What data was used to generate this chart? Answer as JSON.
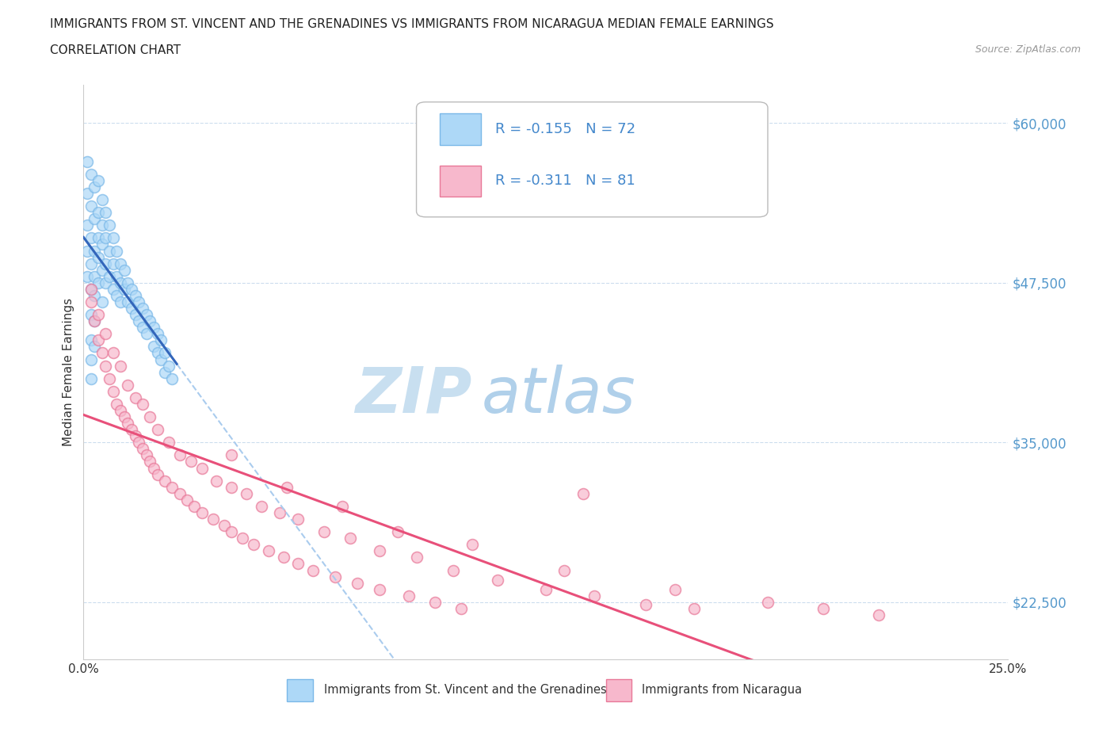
{
  "title_line1": "IMMIGRANTS FROM ST. VINCENT AND THE GRENADINES VS IMMIGRANTS FROM NICARAGUA MEDIAN FEMALE EARNINGS",
  "title_line2": "CORRELATION CHART",
  "source": "Source: ZipAtlas.com",
  "ylabel": "Median Female Earnings",
  "xlim": [
    0.0,
    0.25
  ],
  "ylim": [
    18000,
    63000
  ],
  "yticks": [
    22500,
    35000,
    47500,
    60000
  ],
  "ytick_labels": [
    "$22,500",
    "$35,000",
    "$47,500",
    "$60,000"
  ],
  "blue_R": -0.155,
  "blue_N": 72,
  "pink_R": -0.311,
  "pink_N": 81,
  "blue_color": "#add8f7",
  "blue_edge": "#7ab8e8",
  "pink_color": "#f7b8cc",
  "pink_edge": "#e87898",
  "blue_line_color": "#3366bb",
  "pink_line_color": "#e8507a",
  "dashed_line_color": "#aaccee",
  "grid_color": "#ccddee",
  "watermark_zip_color": "#c8dff0",
  "watermark_atlas_color": "#b0d0ea",
  "legend_blue_label": "Immigrants from St. Vincent and the Grenadines",
  "legend_pink_label": "Immigrants from Nicaragua",
  "blue_x": [
    0.001,
    0.001,
    0.001,
    0.001,
    0.001,
    0.002,
    0.002,
    0.002,
    0.002,
    0.002,
    0.002,
    0.002,
    0.002,
    0.002,
    0.003,
    0.003,
    0.003,
    0.003,
    0.003,
    0.003,
    0.003,
    0.004,
    0.004,
    0.004,
    0.004,
    0.004,
    0.005,
    0.005,
    0.005,
    0.005,
    0.005,
    0.006,
    0.006,
    0.006,
    0.006,
    0.007,
    0.007,
    0.007,
    0.008,
    0.008,
    0.008,
    0.009,
    0.009,
    0.009,
    0.01,
    0.01,
    0.01,
    0.011,
    0.011,
    0.012,
    0.012,
    0.013,
    0.013,
    0.014,
    0.014,
    0.015,
    0.015,
    0.016,
    0.016,
    0.017,
    0.017,
    0.018,
    0.019,
    0.019,
    0.02,
    0.02,
    0.021,
    0.021,
    0.022,
    0.022,
    0.023,
    0.024
  ],
  "blue_y": [
    57000,
    54500,
    52000,
    50000,
    48000,
    56000,
    53500,
    51000,
    49000,
    47000,
    45000,
    43000,
    41500,
    40000,
    55000,
    52500,
    50000,
    48000,
    46500,
    44500,
    42500,
    55500,
    53000,
    51000,
    49500,
    47500,
    54000,
    52000,
    50500,
    48500,
    46000,
    53000,
    51000,
    49000,
    47500,
    52000,
    50000,
    48000,
    51000,
    49000,
    47000,
    50000,
    48000,
    46500,
    49000,
    47500,
    46000,
    48500,
    47000,
    47500,
    46000,
    47000,
    45500,
    46500,
    45000,
    46000,
    44500,
    45500,
    44000,
    45000,
    43500,
    44500,
    44000,
    42500,
    43500,
    42000,
    43000,
    41500,
    42000,
    40500,
    41000,
    40000
  ],
  "pink_x": [
    0.002,
    0.003,
    0.004,
    0.005,
    0.006,
    0.007,
    0.008,
    0.009,
    0.01,
    0.011,
    0.012,
    0.013,
    0.014,
    0.015,
    0.016,
    0.017,
    0.018,
    0.019,
    0.02,
    0.022,
    0.024,
    0.026,
    0.028,
    0.03,
    0.032,
    0.035,
    0.038,
    0.04,
    0.043,
    0.046,
    0.05,
    0.054,
    0.058,
    0.062,
    0.068,
    0.074,
    0.08,
    0.088,
    0.095,
    0.102,
    0.002,
    0.004,
    0.006,
    0.008,
    0.01,
    0.012,
    0.014,
    0.016,
    0.018,
    0.02,
    0.023,
    0.026,
    0.029,
    0.032,
    0.036,
    0.04,
    0.044,
    0.048,
    0.053,
    0.058,
    0.065,
    0.072,
    0.08,
    0.09,
    0.1,
    0.112,
    0.125,
    0.138,
    0.152,
    0.165,
    0.04,
    0.055,
    0.07,
    0.085,
    0.105,
    0.13,
    0.16,
    0.185,
    0.2,
    0.215,
    0.135
  ],
  "pink_y": [
    46000,
    44500,
    43000,
    42000,
    41000,
    40000,
    39000,
    38000,
    37500,
    37000,
    36500,
    36000,
    35500,
    35000,
    34500,
    34000,
    33500,
    33000,
    32500,
    32000,
    31500,
    31000,
    30500,
    30000,
    29500,
    29000,
    28500,
    28000,
    27500,
    27000,
    26500,
    26000,
    25500,
    25000,
    24500,
    24000,
    23500,
    23000,
    22500,
    22000,
    47000,
    45000,
    43500,
    42000,
    41000,
    39500,
    38500,
    38000,
    37000,
    36000,
    35000,
    34000,
    33500,
    33000,
    32000,
    31500,
    31000,
    30000,
    29500,
    29000,
    28000,
    27500,
    26500,
    26000,
    25000,
    24200,
    23500,
    23000,
    22300,
    22000,
    34000,
    31500,
    30000,
    28000,
    27000,
    25000,
    23500,
    22500,
    22000,
    21500,
    31000
  ]
}
